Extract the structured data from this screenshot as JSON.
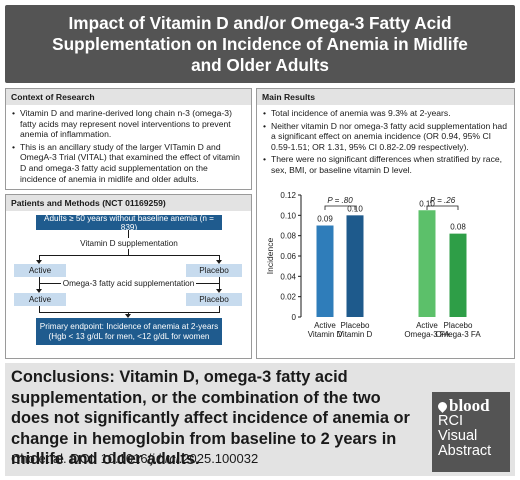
{
  "title": "Impact of Vitamin D and/or Omega-3 Fatty Acid Supplementation on Incidence of Anemia in Midlife and Older Adults",
  "context": {
    "heading": "Context of Research",
    "bullets": [
      "Vitamin D and marine-derived long chain n-3 (omega-3) fatty acids may represent novel interventions to prevent anemia of inflammation.",
      "This is an ancillary study of the larger VITamin D and OmegA-3 Trial (VITAL) that examined the effect of vitamin D and omega-3 fatty acid supplementation on the  incidence of anemia in midlife and older adults."
    ]
  },
  "patients": {
    "heading": "Patients and Methods (NCT 01169259)",
    "enrolled": "Adults ≥ 50 years without baseline anemia (n = 839)",
    "vitd": "Vitamin D supplementation",
    "active1": "Active",
    "placebo1": "Placebo",
    "omega": "Omega-3 fatty acid supplementation",
    "active2": "Active",
    "placebo2": "Placebo",
    "endpoint_line1": "Primary endpoint: Incidence of anemia at 2-years",
    "endpoint_line2": "(Hgb < 13 g/dL for men, <12 g/dL for women"
  },
  "results": {
    "heading": "Main Results",
    "bullets": [
      "Total incidence of anemia was 9.3% at 2-years.",
      "Neither vitamin D nor omega-3 fatty acid supplementation had a significant effect on anemia incidence (OR 0.94, 95% CI 0.59-1.51; OR 1.31, 95% CI 0.82-2.09 respectively).",
      "There were no significant differences when stratified by race, sex, BMI, or baseline vitamin D level."
    ]
  },
  "chart_data": {
    "type": "bar",
    "ylabel": "Incidence",
    "ylim": [
      0,
      0.12
    ],
    "yticks": [
      "0",
      "0.02",
      "0.04",
      "0.06",
      "0.08",
      "0.10",
      "0.12"
    ],
    "categories": [
      "Active\nVitamin D",
      "Placebo\nVitamin D",
      "Active\nOmega-3 FA",
      "Placebo\nOmega-3 FA"
    ],
    "values": [
      0.09,
      0.1,
      0.105,
      0.082
    ],
    "value_labels": [
      "0.09",
      "0.10",
      "0.10",
      "0.08"
    ],
    "colors": [
      "#2f7dba",
      "#1e5a8c",
      "#5cc06a",
      "#2e9e47"
    ],
    "comparisons": [
      {
        "label": "P = .80",
        "from": 0,
        "to": 1
      },
      {
        "label": "P = .26",
        "from": 2,
        "to": 3
      }
    ],
    "grid": false
  },
  "conclusions": {
    "label": "Conclusions:",
    "text": "Vitamin D, omega-3 fatty acid supplementation, or the combination of the two does not significantly affect incidence of anemia or change in hemoglobin from baseline to 2 years in midlife and older adults.",
    "citation_prefix": "Cho et al. DOI: 10.1016/",
    "citation_journal": "j.brci",
    "citation_suffix": ".2025.100032"
  },
  "logo": {
    "word": "blood",
    "line1": "RCI",
    "line2": "Visual",
    "line3": "Abstract"
  }
}
